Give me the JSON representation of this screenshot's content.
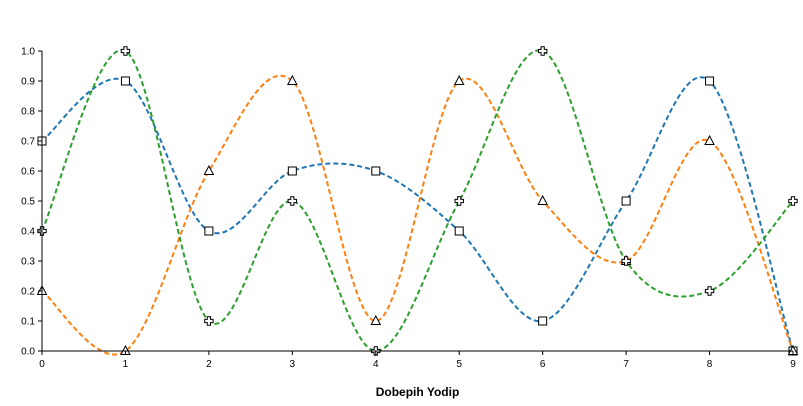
{
  "chart_data": {
    "type": "line",
    "title": "",
    "xlabel": "Dobepih Yodip",
    "ylabel": "",
    "x": [
      0,
      1,
      2,
      3,
      4,
      5,
      6,
      7,
      8,
      9
    ],
    "xlim": [
      0,
      9
    ],
    "ylim": [
      0,
      1.0
    ],
    "x_ticks": [
      "0",
      "1",
      "2",
      "3",
      "4",
      "5",
      "6",
      "7",
      "8",
      "9"
    ],
    "y_ticks": [
      "0.0",
      "0.1",
      "0.2",
      "0.3",
      "0.4",
      "0.5",
      "0.6",
      "0.7",
      "0.8",
      "0.9",
      "1.0"
    ],
    "grid": false,
    "legend": "none",
    "line_style": "dashed smooth curve",
    "series": [
      {
        "values": [
          0.7,
          0.9,
          0.4,
          0.6,
          0.6,
          0.4,
          0.1,
          0.5,
          0.9,
          0.0
        ],
        "color": "#1f77b4",
        "marker": "square"
      },
      {
        "values": [
          0.2,
          0.0,
          0.6,
          0.9,
          0.1,
          0.9,
          0.5,
          0.3,
          0.7,
          0.0
        ],
        "color": "#ff7f0e",
        "marker": "triangle"
      },
      {
        "values": [
          0.4,
          1.0,
          0.1,
          0.5,
          0.0,
          0.5,
          1.0,
          0.3,
          0.2,
          0.5
        ],
        "color": "#2ca02c",
        "marker": "cross"
      }
    ]
  }
}
